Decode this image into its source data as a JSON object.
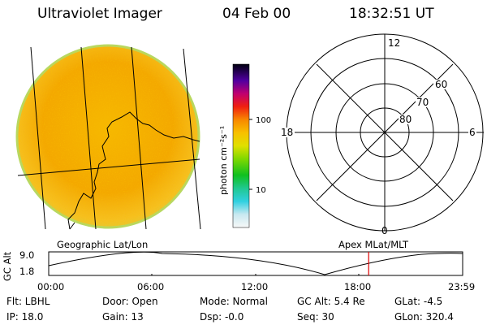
{
  "header": {
    "title": "Ultraviolet Imager",
    "date": "04 Feb 00",
    "time": "18:32:51 UT"
  },
  "colorbar": {
    "label": "photon cm⁻²s⁻¹",
    "ticks": [
      "100",
      "10"
    ]
  },
  "polar_plot": {
    "mlt_labels": [
      "12",
      "18",
      "6",
      "0"
    ],
    "lat_labels": [
      "60",
      "70",
      "80"
    ]
  },
  "captions": {
    "left": "Geographic Lat/Lon",
    "right": "Apex MLat/MLT"
  },
  "altitude_plot": {
    "ylabel": "GC Alt",
    "ymax": "9.0",
    "ymin": "1.8",
    "xticks": [
      "00:00",
      "06:00",
      "12:00",
      "18:00",
      "23:59"
    ],
    "current_time_marker_hour": 18.55,
    "marker_color": "#dd0000"
  },
  "info": {
    "filter": "Flt: LBHL",
    "ip": "IP: 18.0",
    "door": "Door: Open",
    "gain": "Gain: 13",
    "mode": "Mode: Normal",
    "dsp": "Dsp:    -0.0",
    "gc_alt": "GC Alt: 5.4 Re",
    "seq": "Seq: 30",
    "glat": "GLat:    -4.5",
    "glon": "GLon: 320.4"
  }
}
